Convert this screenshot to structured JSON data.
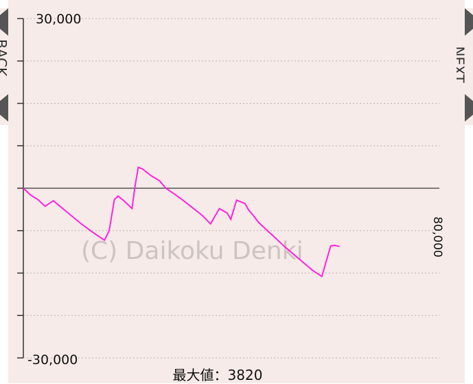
{
  "nav": {
    "back_label": "BACK",
    "next_label": "NEXT"
  },
  "chart_data": {
    "type": "line",
    "title": "",
    "xlabel": "",
    "ylabel": "",
    "ylim": [
      -30000,
      30000
    ],
    "xlim": [
      0,
      80000
    ],
    "y_tick_labels": [
      "30,000",
      "-30,000"
    ],
    "x_end_label": "80,000",
    "grid": true,
    "grid_style": "dotted",
    "zero_line": true,
    "watermark": "(C) Daikoku Denki",
    "max_label": "最大値：3820",
    "line_color": "#ff22dd",
    "series": [
      {
        "x": [
          0,
          1400,
          2800,
          4200,
          4800,
          5800,
          6400,
          8500,
          11000,
          13500,
          15600,
          16500,
          17500,
          18200,
          19200,
          20900,
          21500,
          22100,
          22900,
          24600,
          26200,
          27400,
          29000,
          30800,
          32600,
          34400,
          36000,
          37700,
          39200,
          39900,
          41000,
          42600,
          43300,
          44200,
          45200,
          46800,
          48600,
          50200,
          52000,
          53800,
          55600,
          57400,
          59100,
          59900,
          60800
        ],
        "y": [
          0,
          -1200,
          -2000,
          -3200,
          -2800,
          -2200,
          -2700,
          -4300,
          -6200,
          -7900,
          -9200,
          -7500,
          -2000,
          -1400,
          -2100,
          -3600,
          500,
          3700,
          3400,
          2200,
          1300,
          0,
          -1000,
          -2200,
          -3500,
          -4800,
          -6300,
          -3600,
          -4400,
          -5500,
          -2100,
          -2700,
          -3800,
          -4800,
          -6000,
          -7400,
          -8900,
          -10300,
          -11700,
          -13100,
          -14500,
          -15600,
          -10200,
          -10100,
          -10300
        ]
      }
    ]
  }
}
